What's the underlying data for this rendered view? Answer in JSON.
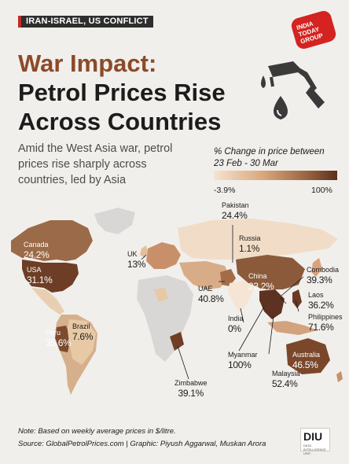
{
  "tag": "IRAN-ISRAEL, US CONFLICT",
  "logo": {
    "line1": "INDIA",
    "line2": "TODAY",
    "line3": "GROUP"
  },
  "title": {
    "line1": "War Impact:",
    "line2": "Petrol Prices Rise",
    "line3": "Across Countries"
  },
  "subtitle": "Amid the West Asia war, petrol prices rise sharply across countries, led by Asia",
  "legend": {
    "title_line1": "% Change in price between",
    "title_line2": "23 Feb - 30 Mar",
    "min": "-3.9%",
    "max": "100%"
  },
  "colors": {
    "background": "#f1efec",
    "title_accent": "#8c4a29",
    "scale_low": "#f7e3cf",
    "scale_high": "#5b2f1c",
    "no_data": "#d9d7d5",
    "tag_red": "#c22b26"
  },
  "icons": {
    "fuel": "fuel-pump-icon",
    "drop": "fuel-drop-icon"
  },
  "countries": [
    {
      "name": "Canada",
      "value": "24.2%"
    },
    {
      "name": "USA",
      "value": "31.1%"
    },
    {
      "name": "UK",
      "value": "13%"
    },
    {
      "name": "Pakistan",
      "value": "24.4%"
    },
    {
      "name": "Russia",
      "value": "1.1%"
    },
    {
      "name": "China",
      "value": "23.2%"
    },
    {
      "name": "Combodia",
      "value": "39.3%"
    },
    {
      "name": "Laos",
      "value": "36.2%"
    },
    {
      "name": "Philippines",
      "value": "71.6%"
    },
    {
      "name": "UAE",
      "value": "40.8%"
    },
    {
      "name": "India",
      "value": "0%"
    },
    {
      "name": "Myanmar",
      "value": "100%"
    },
    {
      "name": "Malaysia",
      "value": "52.4%"
    },
    {
      "name": "Australia",
      "value": "46.5%"
    },
    {
      "name": "Peru",
      "value": "35.6%"
    },
    {
      "name": "Brazil",
      "value": "7.6%"
    },
    {
      "name": "Zimbabwe",
      "value": "39.1%"
    }
  ],
  "footer": {
    "note": "Note: Based on weekly average prices in $/litre.",
    "source": "Source: GlobalPetrolPrices.com",
    "separator": "|",
    "graphic": "Graphic: Piyush Aggarwal, Muskan Arora"
  },
  "brand": {
    "name": "DIU",
    "sub": "DATA INTELLIGENCE UNIT"
  }
}
